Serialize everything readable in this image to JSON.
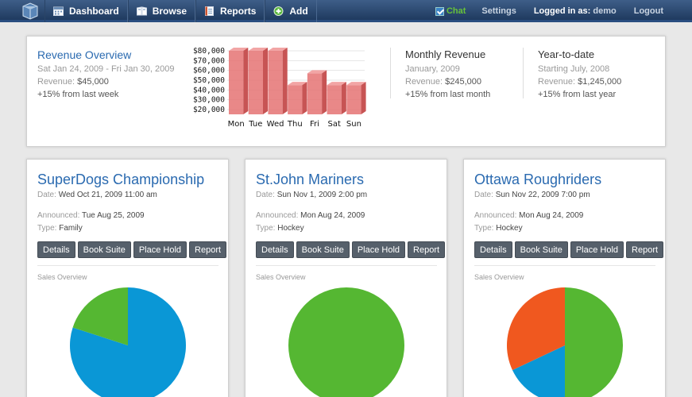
{
  "nav": {
    "items": [
      {
        "label": "Dashboard",
        "icon": "calendar-icon"
      },
      {
        "label": "Browse",
        "icon": "book-icon"
      },
      {
        "label": "Reports",
        "icon": "report-icon"
      },
      {
        "label": "Add",
        "icon": "plus-icon"
      }
    ],
    "chat": "Chat",
    "settings": "Settings",
    "logged_label": "Logged in as:",
    "user": "demo",
    "logout": "Logout"
  },
  "revenue": {
    "overview": {
      "title": "Revenue Overview",
      "range": "Sat Jan 24, 2009 - Fri Jan 30, 2009",
      "value_label": "Revenue:",
      "value": "$45,000",
      "change": "+15% from last week"
    },
    "monthly": {
      "title": "Monthly Revenue",
      "period": "January, 2009",
      "value_label": "Revenue:",
      "value": "$245,000",
      "change": "+15% from last month"
    },
    "ytd": {
      "title": "Year-to-date",
      "period": "Starting July, 2008",
      "value_label": "Revenue:",
      "value": "$1,245,000",
      "change": "+15% from last year"
    }
  },
  "colors": {
    "accent": "#2a6ab0",
    "bar": "#e57373",
    "pie_blue": "#0a97d6",
    "pie_green": "#55b732",
    "pie_orange": "#f0581f"
  },
  "cards": [
    {
      "name": "SuperDogs Championship",
      "date_label": "Date:",
      "date": "Wed Oct 21, 2009 11:00 am",
      "announced_label": "Announced:",
      "announced": "Tue Aug 25, 2009",
      "type_label": "Type:",
      "type": "Family",
      "buttons": [
        "Details",
        "Book Suite",
        "Place Hold",
        "Report"
      ],
      "sales_label": "Sales Overview"
    },
    {
      "name": "St.John Mariners",
      "date_label": "Date:",
      "date": "Sun Nov 1, 2009 2:00 pm",
      "announced_label": "Announced:",
      "announced": "Mon Aug 24, 2009",
      "type_label": "Type:",
      "type": "Hockey",
      "buttons": [
        "Details",
        "Book Suite",
        "Place Hold",
        "Report"
      ],
      "sales_label": "Sales Overview"
    },
    {
      "name": "Ottawa Roughriders",
      "date_label": "Date:",
      "date": "Sun Nov 22, 2009 7:00 pm",
      "announced_label": "Announced:",
      "announced": "Mon Aug 24, 2009",
      "type_label": "Type:",
      "type": "Hockey",
      "buttons": [
        "Details",
        "Book Suite",
        "Place Hold",
        "Report"
      ],
      "sales_label": "Sales Overview"
    }
  ],
  "chart_data": [
    {
      "type": "bar",
      "categories": [
        "Mon",
        "Tue",
        "Wed",
        "Thu",
        "Fri",
        "Sat",
        "Sun"
      ],
      "values": [
        80000,
        80000,
        80000,
        45000,
        57000,
        45000,
        45000
      ],
      "yticks": [
        "$80,000",
        "$70,000",
        "$60,000",
        "$50,000",
        "$40,000",
        "$30,000",
        "$20,000"
      ],
      "ylim": [
        20000,
        80000
      ],
      "grid": true
    },
    {
      "type": "pie",
      "slices": [
        {
          "color": "#0a97d6",
          "value": 80
        },
        {
          "color": "#55b732",
          "value": 20
        }
      ]
    },
    {
      "type": "pie",
      "slices": [
        {
          "color": "#55b732",
          "value": 100
        }
      ]
    },
    {
      "type": "pie",
      "slices": [
        {
          "color": "#55b732",
          "value": 50
        },
        {
          "color": "#0a97d6",
          "value": 18
        },
        {
          "color": "#f0581f",
          "value": 32
        }
      ]
    }
  ]
}
